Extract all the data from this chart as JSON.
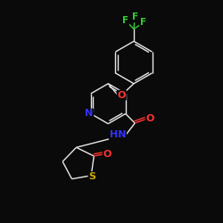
{
  "background_color": "#0a0a0a",
  "bond_color": "#e8e8e8",
  "atom_colors": {
    "O": "#ff3333",
    "N": "#3333ff",
    "S": "#ccaa00",
    "F": "#33cc33"
  },
  "lw": 1.0,
  "fontsize": 7.5
}
